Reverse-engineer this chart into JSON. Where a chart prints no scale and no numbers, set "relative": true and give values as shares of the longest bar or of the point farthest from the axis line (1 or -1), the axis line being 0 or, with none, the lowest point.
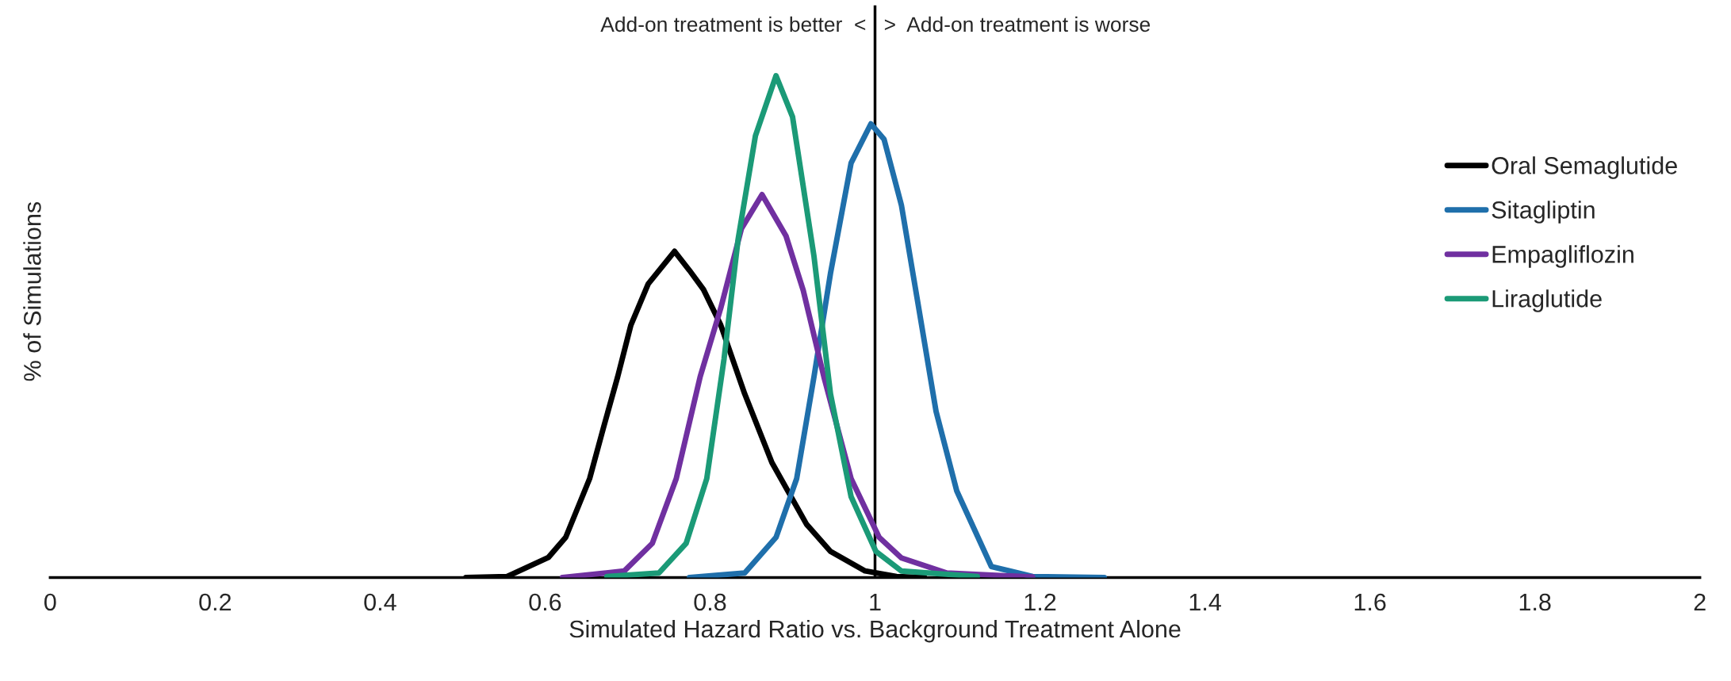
{
  "chart_data": {
    "type": "line",
    "relative": true,
    "xlabel": "Simulated Hazard Ratio vs. Background Treatment Alone",
    "ylabel": "% of Simulations",
    "annotations": [
      "Add-on treatment is better  <",
      ">  Add-on treatment is worse"
    ],
    "xlim": [
      0,
      2
    ],
    "xticks": [
      0,
      0.2,
      0.4,
      0.6,
      0.8,
      1,
      1.2,
      1.4,
      1.6,
      1.8,
      2
    ],
    "grid": false,
    "legend": "right",
    "marker": "none",
    "line_style": "solid",
    "ref_lines": [
      {
        "axis": "x",
        "value": 1,
        "color": "#000000"
      }
    ],
    "series": [
      {
        "name": "Oral Semaglutide",
        "color": "#000000",
        "x": [
          0.504,
          0.554,
          0.604,
          0.625,
          0.654,
          0.671,
          0.688,
          0.704,
          0.725,
          0.757,
          0.775,
          0.792,
          0.813,
          0.842,
          0.875,
          0.917,
          0.946,
          0.988,
          1.026,
          1.06
        ],
        "values": [
          0,
          0.002,
          0.04,
          0.08,
          0.197,
          0.3,
          0.4,
          0.503,
          0.585,
          0.65,
          0.612,
          0.574,
          0.503,
          0.366,
          0.229,
          0.106,
          0.052,
          0.013,
          0.002,
          0
        ]
      },
      {
        "name": "Sitagliptin",
        "color": "#1f6fab",
        "x": [
          0.775,
          0.842,
          0.88,
          0.905,
          0.926,
          0.946,
          0.971,
          0.995,
          1.011,
          1.032,
          1.053,
          1.074,
          1.099,
          1.141,
          1.191,
          1.278
        ],
        "values": [
          0,
          0.009,
          0.08,
          0.197,
          0.4,
          0.606,
          0.826,
          0.904,
          0.873,
          0.742,
          0.537,
          0.331,
          0.173,
          0.022,
          0.002,
          0
        ]
      },
      {
        "name": "Empagliflozin",
        "color": "#7030a0",
        "x": [
          0.621,
          0.696,
          0.73,
          0.759,
          0.788,
          0.813,
          0.838,
          0.863,
          0.892,
          0.913,
          0.938,
          0.971,
          1.005,
          1.032,
          1.087,
          1.191
        ],
        "values": [
          0,
          0.013,
          0.068,
          0.197,
          0.4,
          0.537,
          0.695,
          0.763,
          0.681,
          0.572,
          0.4,
          0.197,
          0.08,
          0.039,
          0.009,
          0.001
        ]
      },
      {
        "name": "Liraglutide",
        "color": "#1b9a77",
        "x": [
          0.675,
          0.738,
          0.771,
          0.796,
          0.817,
          0.834,
          0.855,
          0.88,
          0.9,
          0.926,
          0.946,
          0.971,
          1.001,
          1.032,
          1.124
        ],
        "values": [
          0.002,
          0.009,
          0.068,
          0.197,
          0.436,
          0.674,
          0.88,
          1,
          0.918,
          0.64,
          0.366,
          0.161,
          0.052,
          0.013,
          0.002
        ]
      }
    ]
  }
}
